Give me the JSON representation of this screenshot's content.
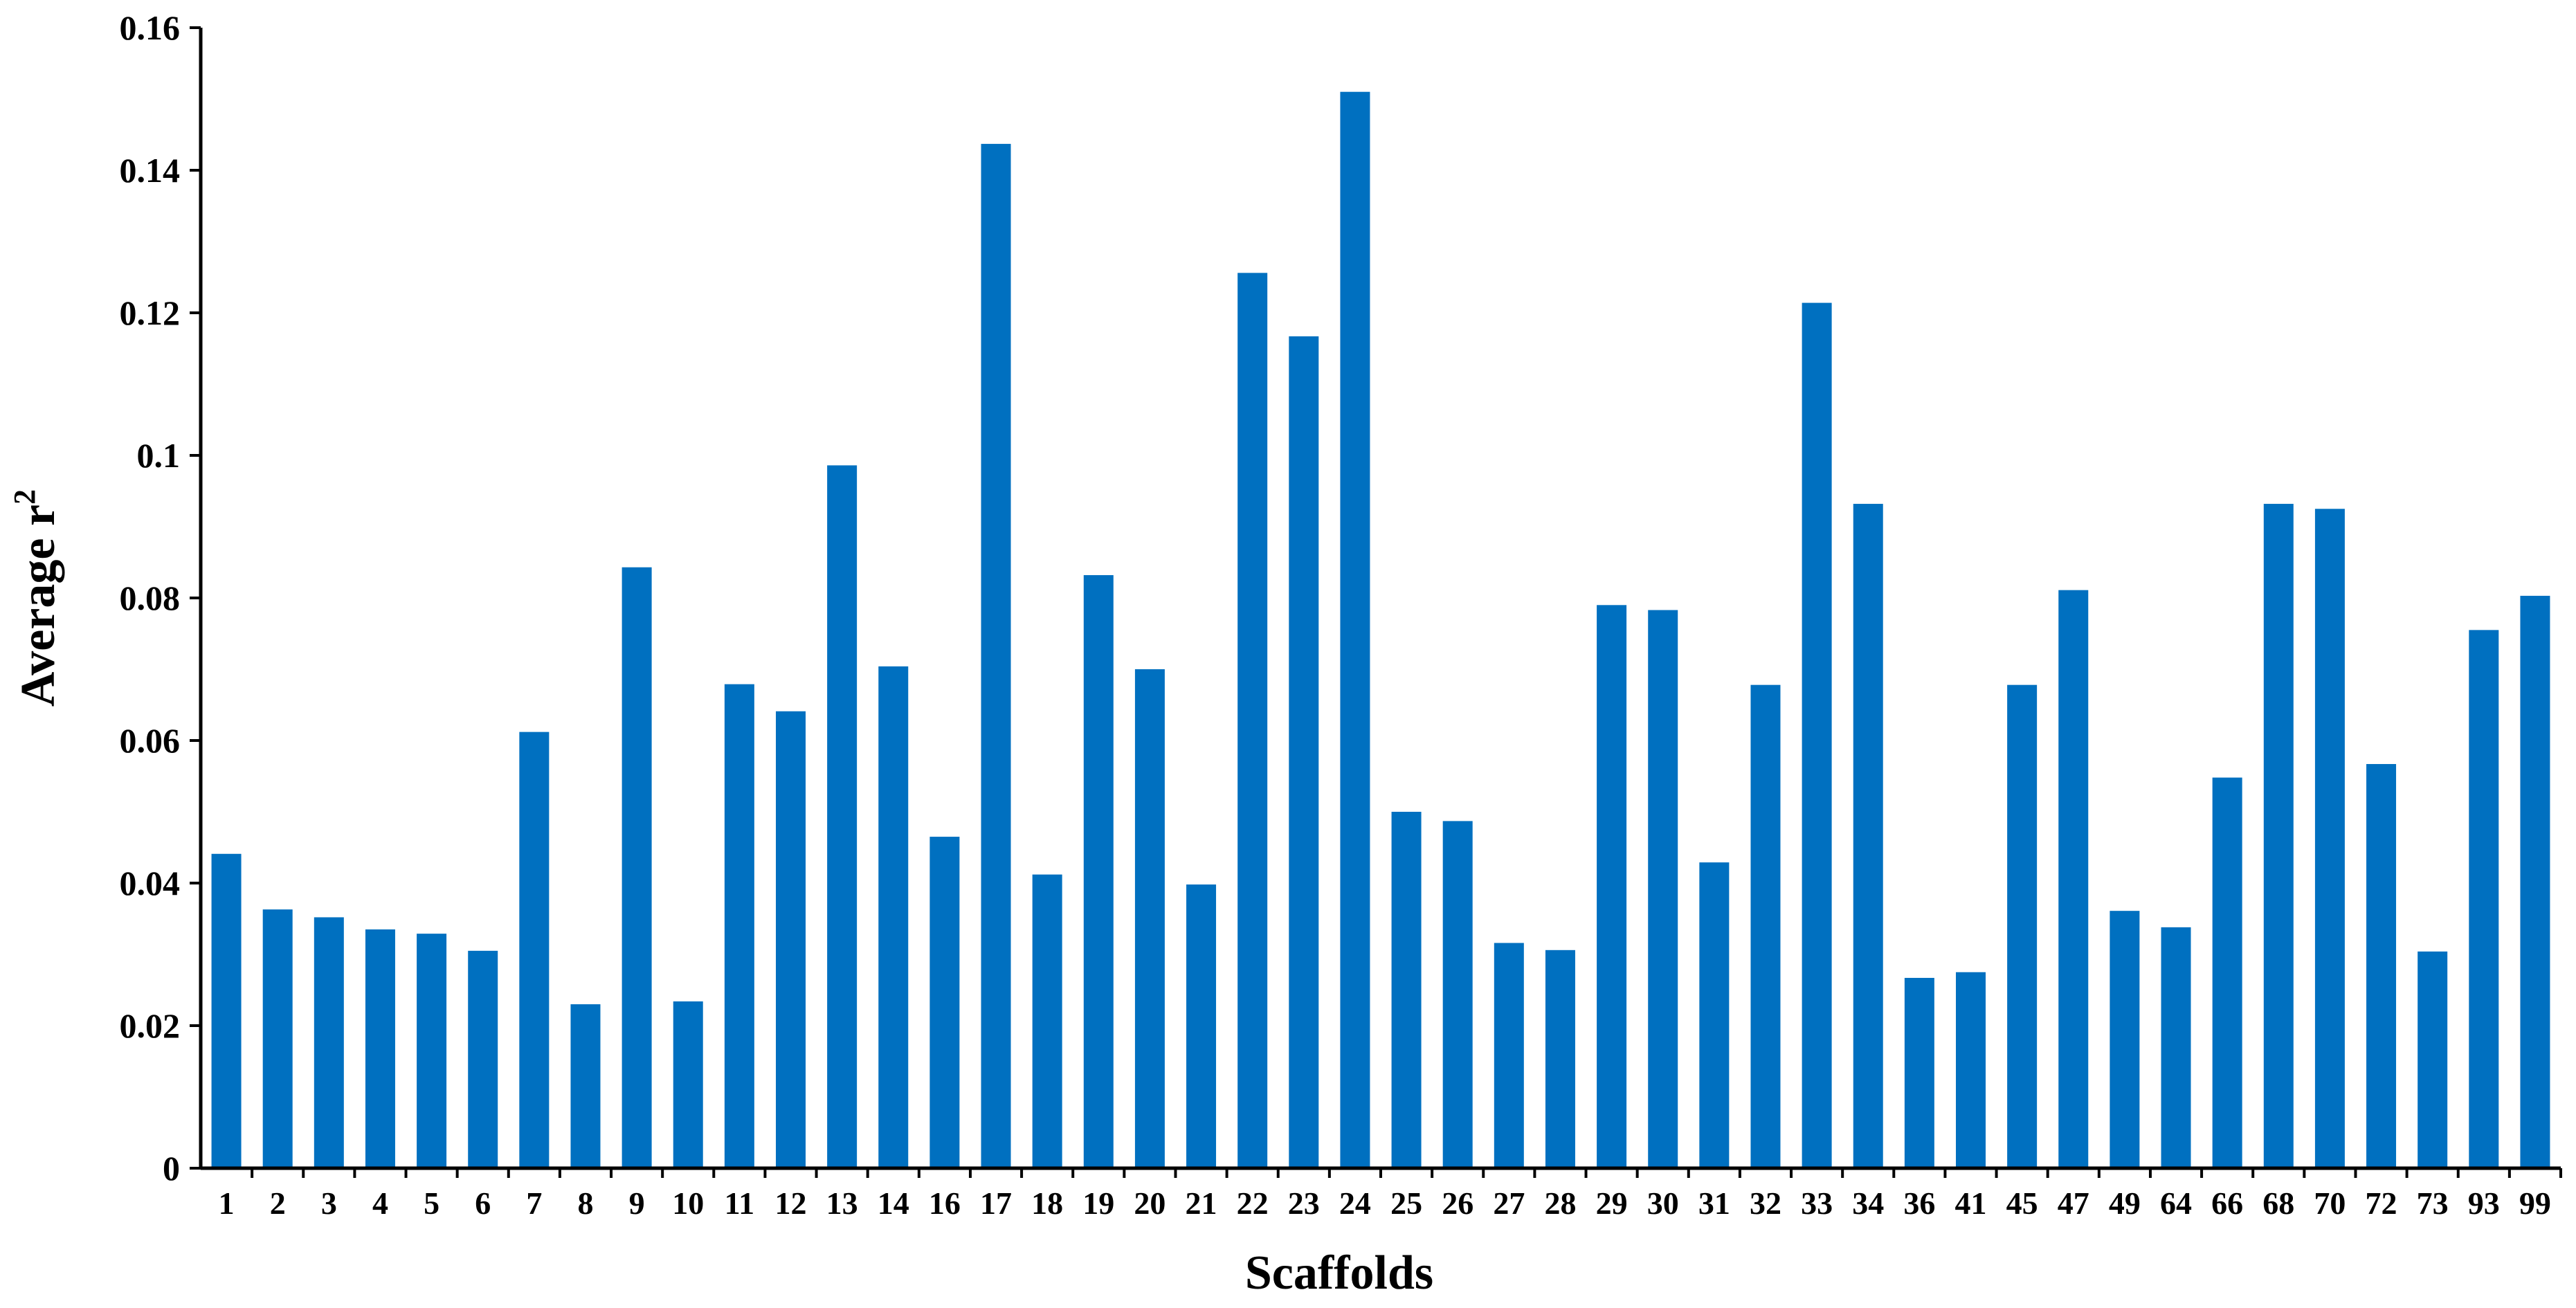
{
  "chart_data": {
    "type": "bar",
    "xlabel": "Scaffolds",
    "ylabel": "Average r",
    "ylabel_superscript": "2",
    "ylim": [
      0,
      0.16
    ],
    "yticks": [
      0,
      0.02,
      0.04,
      0.06,
      0.08,
      0.1,
      0.12,
      0.14,
      0.16
    ],
    "ytick_labels": [
      "0",
      "0.02",
      "0.04",
      "0.06",
      "0.08",
      "0.1",
      "0.12",
      "0.14",
      "0.16"
    ],
    "grid": false,
    "bar_color": "#0070C0",
    "categories": [
      "1",
      "2",
      "3",
      "4",
      "5",
      "6",
      "7",
      "8",
      "9",
      "10",
      "11",
      "12",
      "13",
      "14",
      "16",
      "17",
      "18",
      "19",
      "20",
      "21",
      "22",
      "23",
      "24",
      "25",
      "26",
      "27",
      "28",
      "29",
      "30",
      "31",
      "32",
      "33",
      "34",
      "36",
      "41",
      "45",
      "47",
      "49",
      "64",
      "66",
      "68",
      "70",
      "72",
      "73",
      "93",
      "99"
    ],
    "values": [
      0.0441,
      0.0363,
      0.0352,
      0.0335,
      0.0329,
      0.0305,
      0.0612,
      0.023,
      0.0843,
      0.0234,
      0.0679,
      0.0641,
      0.0986,
      0.0704,
      0.0465,
      0.1437,
      0.0412,
      0.0832,
      0.07,
      0.0398,
      0.1256,
      0.1167,
      0.151,
      0.05,
      0.0487,
      0.0316,
      0.0306,
      0.079,
      0.0783,
      0.0429,
      0.0678,
      0.1214,
      0.0932,
      0.0267,
      0.0275,
      0.0678,
      0.0811,
      0.0361,
      0.0338,
      0.0548,
      0.0932,
      0.0925,
      0.0567,
      0.0304,
      0.0755,
      0.0803
    ]
  }
}
